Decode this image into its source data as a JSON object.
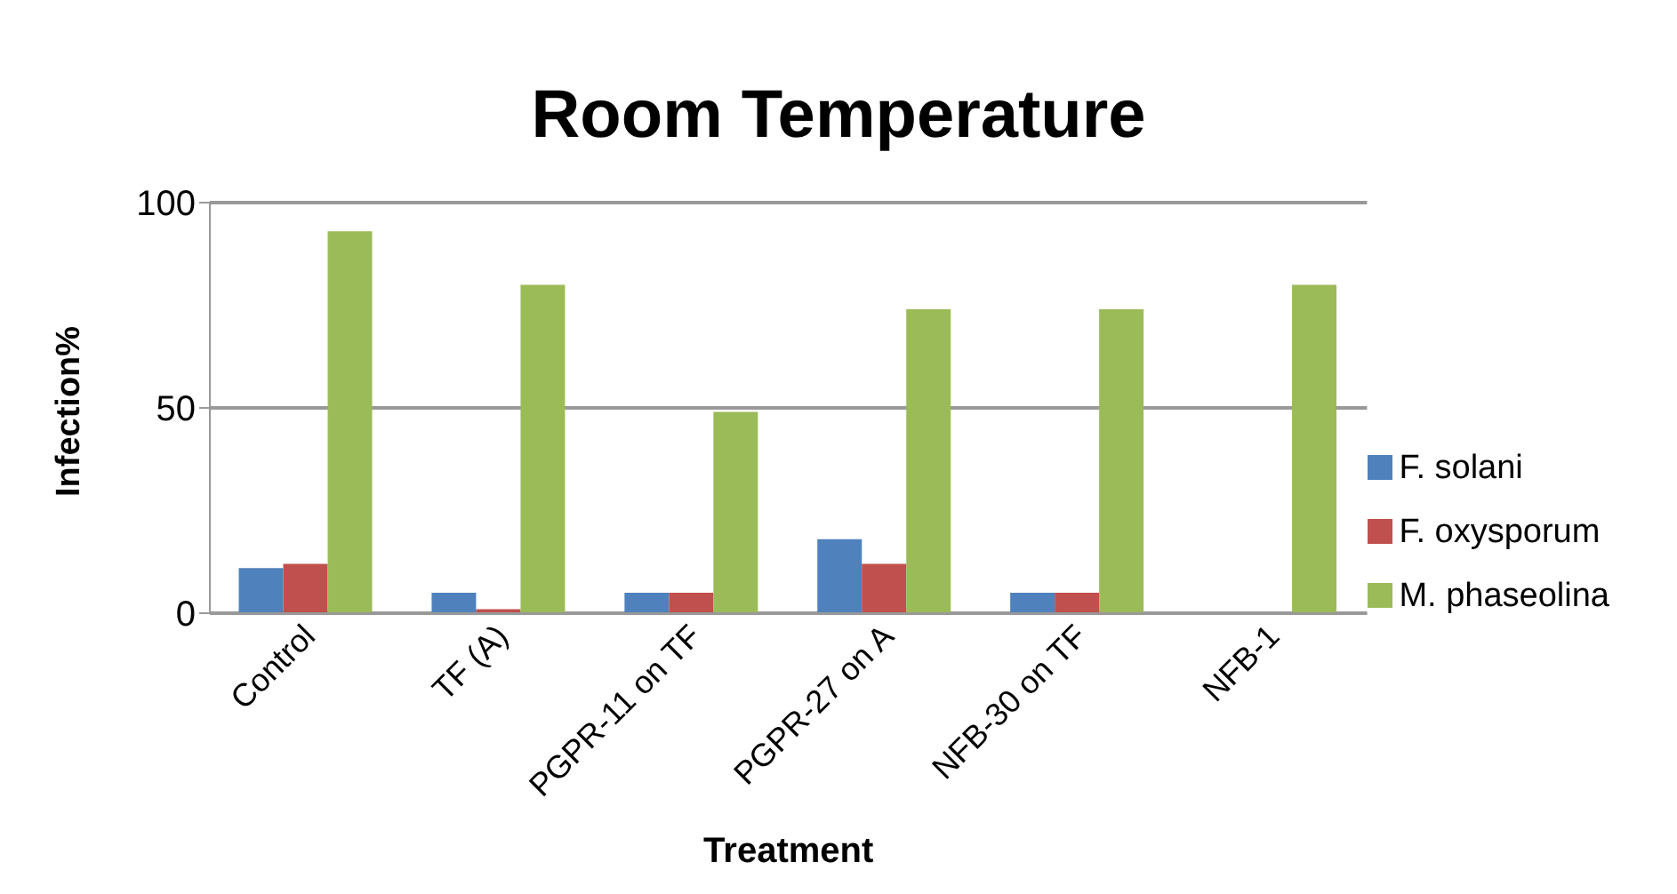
{
  "chart_data": {
    "type": "bar",
    "title": "Room Temperature",
    "xlabel": "Treatment",
    "ylabel": "Infection%",
    "categories": [
      "Control",
      "TF (A)",
      "PGPR-11 on TF",
      "PGPR-27 on A",
      "NFB-30 on TF",
      "NFB-1"
    ],
    "series": [
      {
        "name": "F. solani",
        "color": "#4f81bd",
        "values": [
          11,
          5,
          5,
          18,
          5,
          0
        ]
      },
      {
        "name": "F. oxysporum",
        "color": "#c0504d",
        "values": [
          12,
          1,
          5,
          12,
          5,
          0
        ]
      },
      {
        "name": "M. phaseolina",
        "color": "#9bbb59",
        "values": [
          93,
          80,
          49,
          74,
          74,
          80
        ]
      }
    ],
    "ylim": [
      0,
      100
    ],
    "yticks": [
      0,
      50,
      100
    ],
    "grid": "y",
    "legend": "right"
  }
}
